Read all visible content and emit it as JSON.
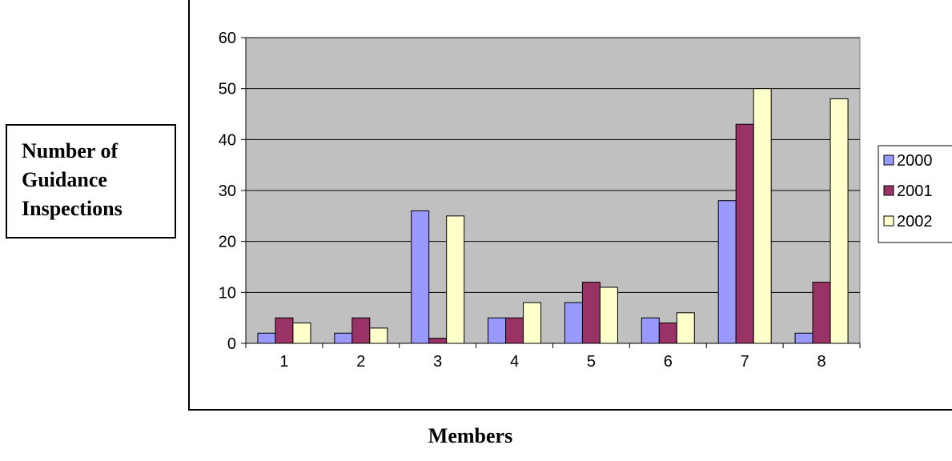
{
  "chart_data": {
    "type": "bar",
    "ylabel": "Number of Guidance Inspections",
    "ylabel_lines": [
      "Number of",
      "Guidance",
      "Inspections"
    ],
    "xlabel": "Members",
    "categories": [
      "1",
      "2",
      "3",
      "4",
      "5",
      "6",
      "7",
      "8"
    ],
    "series": [
      {
        "name": "2000",
        "color": "#9999ff",
        "values": [
          2,
          2,
          26,
          5,
          8,
          5,
          28,
          2
        ]
      },
      {
        "name": "2001",
        "color": "#993366",
        "values": [
          5,
          5,
          1,
          5,
          12,
          4,
          43,
          12
        ]
      },
      {
        "name": "2002",
        "color": "#ffffcc",
        "values": [
          4,
          3,
          25,
          8,
          11,
          6,
          50,
          48
        ]
      }
    ],
    "ylim": [
      0,
      60
    ],
    "yticks": [
      "0",
      "10",
      "20",
      "30",
      "40",
      "50",
      "60"
    ],
    "grid": true,
    "plot_background": "#c0c0c0",
    "legend_position": "right"
  }
}
